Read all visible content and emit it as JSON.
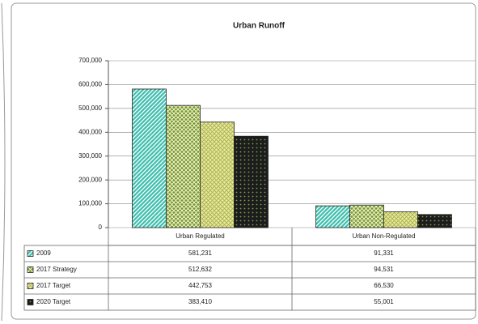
{
  "chart_data": {
    "type": "bar",
    "title": "Urban Runoff",
    "categories": [
      "Urban Regulated",
      "Urban Non-Regulated"
    ],
    "series": [
      {
        "name": "2009",
        "color": "#3fbfae",
        "values": [
          581231,
          91331
        ],
        "value_labels": [
          "581,231",
          "91,331"
        ]
      },
      {
        "name": "2017 Strategy",
        "color": "#7a9a1e",
        "values": [
          512632,
          94531
        ],
        "value_labels": [
          "512,632",
          "94,531"
        ]
      },
      {
        "name": "2017 Target",
        "color": "#e6ea9a",
        "values": [
          442753,
          66530
        ],
        "value_labels": [
          "442,753",
          "66,530"
        ]
      },
      {
        "name": "2020 Target",
        "color": "#1c1c1c",
        "values": [
          383410,
          55001
        ],
        "value_labels": [
          "383,410",
          "55,001"
        ]
      }
    ],
    "ylim": [
      0,
      700000
    ],
    "yticks": [
      {
        "value": 0,
        "label": "0"
      },
      {
        "value": 100000,
        "label": "100,000"
      },
      {
        "value": 200000,
        "label": "200,000"
      },
      {
        "value": 300000,
        "label": "300,000"
      },
      {
        "value": 400000,
        "label": "400,000"
      },
      {
        "value": 500000,
        "label": "500,000"
      },
      {
        "value": 600000,
        "label": "600,000"
      },
      {
        "value": 700000,
        "label": "700,000"
      }
    ],
    "grid": true
  }
}
